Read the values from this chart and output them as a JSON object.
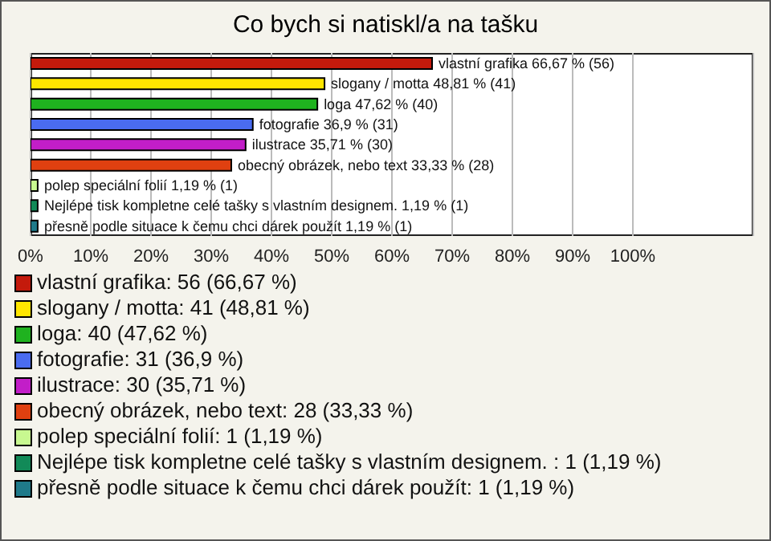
{
  "chart_data": {
    "type": "bar",
    "orientation": "horizontal",
    "title": "Co bych si natiskl/a na tašku",
    "categories": [
      null,
      null,
      null,
      null,
      null,
      null,
      null,
      null,
      null
    ],
    "values": [
      66.67,
      48.81,
      47.62,
      36.9,
      35.71,
      33.33,
      1.19,
      1.19,
      1.19
    ],
    "colors": [
      "#c41a0c",
      "#ffe600",
      "#1fb21f",
      "#4a6cf0",
      "#c21ec8",
      "#e04010",
      "#c8f890",
      "#128a58",
      "#1f7a8a"
    ],
    "value_labels": [
      "vlastní grafika 66,67 % (56)",
      "slogany / motta 48,81 % (41)",
      "loga 47,62 % (40)",
      "fotografie 36,9 % (31)",
      "ilustrace 35,71 % (30)",
      "obecný obrázek, nebo text 33,33 % (28)",
      "polep speciální folií 1,19 % (1)",
      "Nejlépe tisk kompletne celé tašky s vlastním designem.  1,19 % (1)",
      "přesně podle situace k čemu chci dárek použít 1,19 % (1)"
    ],
    "xlim": [
      0,
      120
    ],
    "xticks": [
      {
        "value": 0,
        "label": "0%"
      },
      {
        "value": 10,
        "label": "10%"
      },
      {
        "value": 20,
        "label": "20%"
      },
      {
        "value": 30,
        "label": "30%"
      },
      {
        "value": 40,
        "label": "40%"
      },
      {
        "value": 50,
        "label": "50%"
      },
      {
        "value": 60,
        "label": "60%"
      },
      {
        "value": 70,
        "label": "70%"
      },
      {
        "value": 80,
        "label": "80%"
      },
      {
        "value": 90,
        "label": "90%"
      },
      {
        "value": 100,
        "label": "100%"
      }
    ],
    "grid": "x",
    "annotations": [
      "vlastní grafika: 56 (66,67 %)",
      "slogany / motta: 41 (48,81 %)",
      "loga: 40 (47,62 %)",
      "fotografie: 31 (36,9 %)",
      "ilustrace: 30 (35,71 %)",
      "obecný obrázek, nebo text: 28 (33,33 %)",
      "polep speciální folií: 1 (1,19 %)",
      "Nejlépe tisk kompletne celé tašky s vlastním designem. : 1 (1,19 %)",
      "přesně podle situace k čemu chci dárek použít: 1 (1,19 %)"
    ]
  }
}
